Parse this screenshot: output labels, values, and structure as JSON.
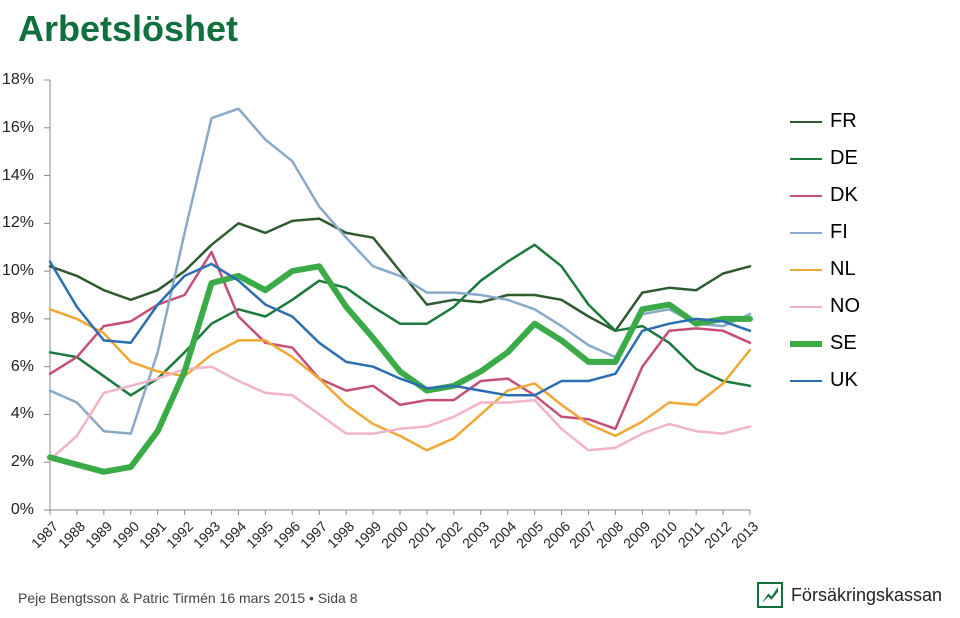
{
  "title": "Arbetslöshet",
  "footer": "Peje Bengtsson & Patric Tirmén 16 mars 2015 • Sida 8",
  "logo_text": "Försäkringskassan",
  "y_axis": {
    "min": 0,
    "max": 18,
    "step": 2,
    "suffix": "%",
    "tick_color": "#888888",
    "axis_color": "#888888"
  },
  "x_axis": {
    "start": 1987,
    "end": 2013
  },
  "series": [
    {
      "key": "FR",
      "label": "FR",
      "color": "#2f5a2f",
      "width": 2.5,
      "vals": [
        10.2,
        9.8,
        9.2,
        8.8,
        9.2,
        10.0,
        11.1,
        12.0,
        11.6,
        12.1,
        12.2,
        11.6,
        11.4,
        10.0,
        8.6,
        8.8,
        8.7,
        9.0,
        9.0,
        8.8,
        8.1,
        7.5,
        9.1,
        9.3,
        9.2,
        9.9,
        10.2
      ]
    },
    {
      "key": "DE",
      "label": "DE",
      "color": "#1a7a3c",
      "width": 2.5,
      "vals": [
        6.6,
        6.4,
        5.6,
        4.8,
        5.5,
        6.6,
        7.8,
        8.4,
        8.1,
        8.8,
        9.6,
        9.3,
        8.5,
        7.8,
        7.8,
        8.5,
        9.6,
        10.4,
        11.1,
        10.2,
        8.6,
        7.5,
        7.7,
        7.0,
        5.9,
        5.4,
        5.2
      ]
    },
    {
      "key": "DK",
      "label": "DK",
      "color": "#c44f79",
      "width": 2.5,
      "vals": [
        5.7,
        6.4,
        7.7,
        7.9,
        8.6,
        9.0,
        10.8,
        8.1,
        7.0,
        6.8,
        5.5,
        5.0,
        5.2,
        4.4,
        4.6,
        4.6,
        5.4,
        5.5,
        4.8,
        3.9,
        3.8,
        3.4,
        6.0,
        7.5,
        7.6,
        7.5,
        7.0
      ]
    },
    {
      "key": "FI",
      "label": "FI",
      "color": "#8aa9c8",
      "width": 2.5,
      "vals": [
        5.0,
        4.5,
        3.3,
        3.2,
        6.6,
        11.6,
        16.4,
        16.8,
        15.5,
        14.6,
        12.7,
        11.4,
        10.2,
        9.8,
        9.1,
        9.1,
        9.0,
        8.8,
        8.4,
        7.7,
        6.9,
        6.4,
        8.2,
        8.4,
        7.8,
        7.7,
        8.2
      ]
    },
    {
      "key": "NL",
      "label": "NL",
      "color": "#f0a734",
      "width": 2.5,
      "vals": [
        8.4,
        8.0,
        7.4,
        6.2,
        5.8,
        5.6,
        6.5,
        7.1,
        7.1,
        6.4,
        5.5,
        4.4,
        3.6,
        3.1,
        2.5,
        3.0,
        4.0,
        5.0,
        5.3,
        4.4,
        3.6,
        3.1,
        3.7,
        4.5,
        4.4,
        5.3,
        6.7
      ]
    },
    {
      "key": "NO",
      "label": "NO",
      "color": "#f3b3c7",
      "width": 2.5,
      "vals": [
        2.1,
        3.1,
        4.9,
        5.2,
        5.5,
        5.9,
        6.0,
        5.4,
        4.9,
        4.8,
        4.0,
        3.2,
        3.2,
        3.4,
        3.5,
        3.9,
        4.5,
        4.5,
        4.6,
        3.4,
        2.5,
        2.6,
        3.2,
        3.6,
        3.3,
        3.2,
        3.5
      ]
    },
    {
      "key": "SE",
      "label": "SE",
      "color": "#3aab47",
      "width": 6.0,
      "vals": [
        2.2,
        1.9,
        1.6,
        1.8,
        3.3,
        5.8,
        9.5,
        9.8,
        9.2,
        10.0,
        10.2,
        8.5,
        7.2,
        5.8,
        5.0,
        5.2,
        5.8,
        6.6,
        7.8,
        7.1,
        6.2,
        6.2,
        8.4,
        8.6,
        7.8,
        8.0,
        8.0
      ]
    },
    {
      "key": "UK",
      "label": "UK",
      "color": "#2b6fb3",
      "width": 2.5,
      "vals": [
        10.4,
        8.5,
        7.1,
        7.0,
        8.6,
        9.8,
        10.3,
        9.6,
        8.6,
        8.1,
        7.0,
        6.2,
        6.0,
        5.5,
        5.1,
        5.2,
        5.0,
        4.8,
        4.8,
        5.4,
        5.4,
        5.7,
        7.5,
        7.8,
        8.0,
        7.9,
        7.5
      ]
    }
  ],
  "colors": {
    "background": "#ffffff",
    "title": "#0f6f3d",
    "text": "#222222",
    "axis": "#888888"
  }
}
